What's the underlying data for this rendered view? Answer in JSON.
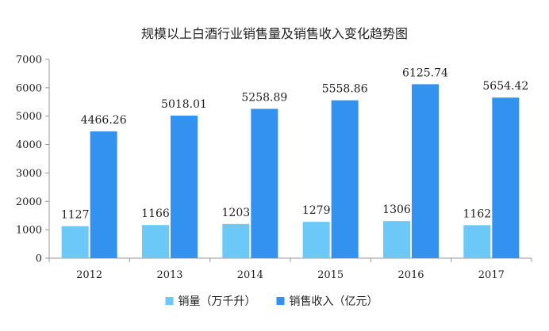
{
  "chart_data": {
    "type": "bar",
    "title": "规模以上白酒行业销售量及销售收入变化趋势图",
    "xlabel": "",
    "ylabel": "",
    "categories": [
      "2012",
      "2013",
      "2014",
      "2015",
      "2016",
      "2017"
    ],
    "ylim": [
      0,
      7000
    ],
    "yticks": [
      0,
      1000,
      2000,
      3000,
      4000,
      5000,
      6000,
      7000
    ],
    "grid": false,
    "legend_position": "bottom",
    "series": [
      {
        "name": "销量（万千升）",
        "color": "#6cc8f7",
        "values": [
          1127,
          1166,
          1203,
          1279,
          1306,
          1162
        ],
        "labels": [
          "1127",
          "1166",
          "1203",
          "1279",
          "1306",
          "1162"
        ]
      },
      {
        "name": "销售收入（亿元）",
        "color": "#3391f0",
        "values": [
          4466.26,
          5018.01,
          5258.89,
          5558.86,
          6125.74,
          5654.42
        ],
        "labels": [
          "4466.26",
          "5018.01",
          "5258.89",
          "5558.86",
          "6125.74",
          "5654.42"
        ]
      }
    ]
  }
}
